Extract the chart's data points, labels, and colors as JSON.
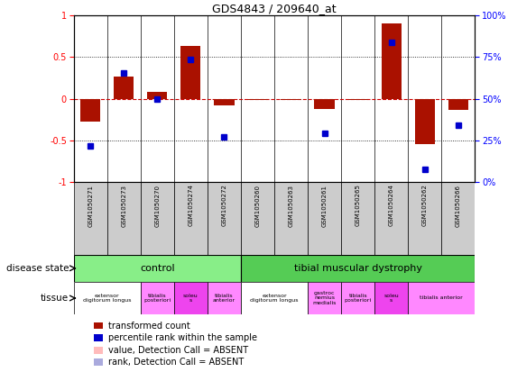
{
  "title": "GDS4843 / 209640_at",
  "samples": [
    "GSM1050271",
    "GSM1050273",
    "GSM1050270",
    "GSM1050274",
    "GSM1050272",
    "GSM1050260",
    "GSM1050263",
    "GSM1050261",
    "GSM1050265",
    "GSM1050264",
    "GSM1050262",
    "GSM1050266"
  ],
  "bar_values": [
    -0.28,
    0.27,
    0.08,
    0.63,
    -0.08,
    -0.02,
    -0.02,
    -0.12,
    -0.02,
    0.9,
    -0.54,
    -0.13
  ],
  "dot_values": [
    -0.57,
    0.31,
    -0.01,
    0.47,
    -0.46,
    null,
    null,
    -0.42,
    null,
    0.68,
    -0.85,
    -0.32
  ],
  "ylim": [
    -1,
    1
  ],
  "y2lim": [
    0,
    100
  ],
  "yticks": [
    -1,
    -0.5,
    0,
    0.5,
    1
  ],
  "ytick_labels": [
    "-1",
    "-0.5",
    "0",
    "0.5",
    "1"
  ],
  "y2ticks": [
    0,
    25,
    50,
    75,
    100
  ],
  "y2tick_labels": [
    "0%",
    "25%",
    "50%",
    "75%",
    "100%"
  ],
  "bar_color": "#aa1100",
  "dot_color": "#0000cc",
  "dot_absent_color": "#8888cc",
  "bar_absent_color": "#ffaaaa",
  "zero_line_color": "#cc0000",
  "dotted_line_color": "#000000",
  "control_n": 5,
  "disease_n": 7,
  "disease_state_control_label": "control",
  "disease_state_disease_label": "tibial muscular dystrophy",
  "control_color": "#88ee88",
  "disease_color": "#55cc55",
  "tissue_groups": [
    {
      "label": "extensor\ndigitorum longus",
      "indices": [
        0,
        1
      ],
      "color": "#ffffff"
    },
    {
      "label": "tibialis\nposteriori",
      "indices": [
        2
      ],
      "color": "#ff88ff"
    },
    {
      "label": "soleu\ns",
      "indices": [
        3
      ],
      "color": "#ee44ee"
    },
    {
      "label": "tibialis\nanterior",
      "indices": [
        4
      ],
      "color": "#ff88ff"
    },
    {
      "label": "extensor\ndigitorum longus",
      "indices": [
        5,
        6
      ],
      "color": "#ffffff"
    },
    {
      "label": "gastroc\nnemius\nmedialis",
      "indices": [
        7
      ],
      "color": "#ff88ff"
    },
    {
      "label": "tibialis\nposteriori",
      "indices": [
        8
      ],
      "color": "#ff88ff"
    },
    {
      "label": "soleu\ns",
      "indices": [
        9
      ],
      "color": "#ee44ee"
    },
    {
      "label": "tibialis anterior",
      "indices": [
        10,
        11
      ],
      "color": "#ff88ff"
    }
  ],
  "legend_items": [
    {
      "label": "transformed count",
      "color": "#aa1100"
    },
    {
      "label": "percentile rank within the sample",
      "color": "#0000cc"
    },
    {
      "label": "value, Detection Call = ABSENT",
      "color": "#ffbbbb"
    },
    {
      "label": "rank, Detection Call = ABSENT",
      "color": "#aaaadd"
    }
  ],
  "bar_width": 0.6,
  "fig_width": 5.63,
  "fig_height": 4.23
}
